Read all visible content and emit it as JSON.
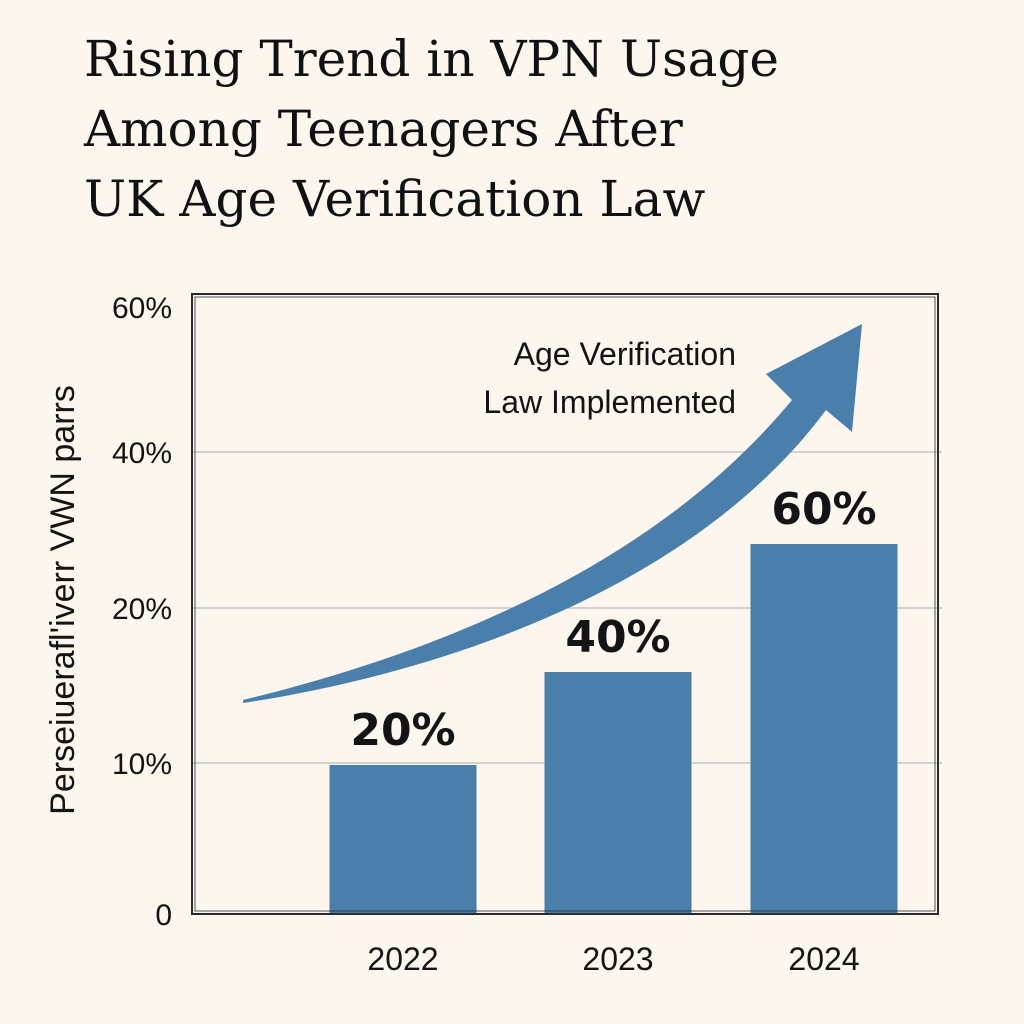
{
  "chart_data": {
    "type": "bar",
    "title_lines": [
      "Rising Trend in VPN Usage",
      "Among Teenagers After",
      "UK Age Verification Law"
    ],
    "ylabel": "Perseiuerafl'iverr VWN parrs",
    "xlabel": "",
    "categories": [
      "2022",
      "2023",
      "2024"
    ],
    "values": [
      20,
      40,
      60
    ],
    "data_labels": [
      "20%",
      "40%",
      "60%"
    ],
    "y_ticks": [
      {
        "label": "0",
        "value": 0
      },
      {
        "label": "10%",
        "value": 10
      },
      {
        "label": "20%",
        "value": 20
      },
      {
        "label": "40%",
        "value": 40
      },
      {
        "label": "60%",
        "value": 60
      }
    ],
    "annotation_lines": [
      "Age Verification",
      "Law Implemented"
    ],
    "grid": true,
    "bar_color": "#4a7fab",
    "arrow_color": "#4a7fab"
  }
}
